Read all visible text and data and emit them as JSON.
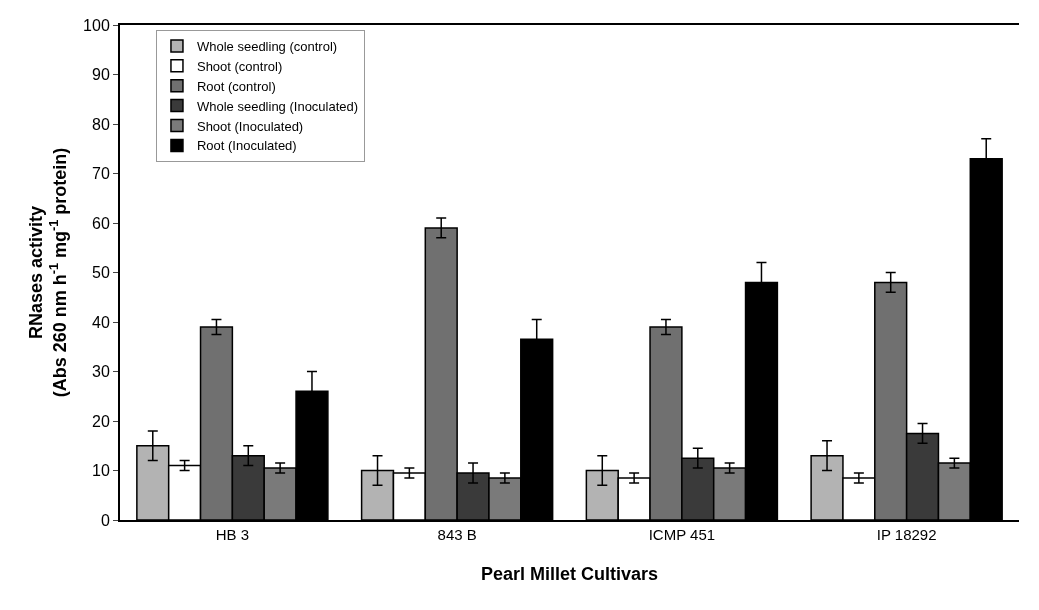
{
  "chart_data": {
    "type": "bar",
    "xlabel": "Pearl Millet Cultivars",
    "ylabel": "RNases activity\n(Abs 260 nm h$^{-1}$ mg$^{-1}$ protein)",
    "categories": [
      "HB 3",
      "843 B",
      "ICMP 451",
      "IP 18292"
    ],
    "series": [
      {
        "name": "Whole seedling (control)",
        "color": "#b3b3b3",
        "values": [
          15,
          10,
          10,
          13
        ],
        "errors": [
          3,
          3,
          3,
          3
        ]
      },
      {
        "name": "Shoot (control)",
        "color": "#ffffff",
        "values": [
          11,
          9.5,
          8.5,
          8.5
        ],
        "errors": [
          1,
          1,
          1,
          1
        ]
      },
      {
        "name": "Root (control)",
        "color": "#707070",
        "values": [
          39,
          59,
          39,
          48
        ],
        "errors": [
          1.5,
          2,
          1.5,
          2
        ]
      },
      {
        "name": "Whole seedling (Inoculated)",
        "color": "#3a3a3a",
        "values": [
          13,
          9.5,
          12.5,
          17.5
        ],
        "errors": [
          2,
          2,
          2,
          2
        ]
      },
      {
        "name": "Shoot (Inoculated)",
        "color": "#7a7a7a",
        "values": [
          10.5,
          8.5,
          10.5,
          11.5
        ],
        "errors": [
          1,
          1,
          1,
          1
        ]
      },
      {
        "name": "Root (Inoculated)",
        "color": "#000000",
        "values": [
          26,
          36.5,
          48,
          73
        ],
        "errors": [
          4,
          4,
          4,
          4
        ]
      }
    ],
    "ylim": [
      0,
      100
    ],
    "yticks": [
      0,
      10,
      20,
      30,
      40,
      50,
      60,
      70,
      80,
      90,
      100
    ],
    "grid": false,
    "legend": "top left"
  }
}
